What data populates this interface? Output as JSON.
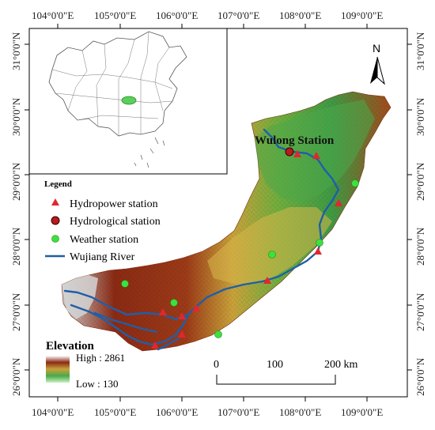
{
  "axes": {
    "top_ticks": [
      "104°0'0\"E",
      "105°0'0\"E",
      "106°0'0\"E",
      "107°0'0\"E",
      "108°0'0\"E",
      "109°0'0\"E"
    ],
    "bottom_ticks": [
      "104°0'0\"E",
      "105°0'0\"E",
      "106°0'0\"E",
      "107°0'0\"E",
      "108°0'0\"E",
      "109°0'0\"E"
    ],
    "left_ticks": [
      "31°0'0\"N",
      "30°0'0\"N",
      "29°0'0\"N",
      "28°0'0\"N",
      "27°0'0\"N",
      "26°0'0\"N"
    ],
    "right_ticks": [
      "31°0'0\"N",
      "30°0'0\"N",
      "29°0'0\"N",
      "28°0'0\"N",
      "27°0'0\"N",
      "26°0'0\"N"
    ]
  },
  "legend": {
    "title": "Legend",
    "items": [
      {
        "label": "Hydropower station",
        "symbol": "triangle",
        "color": "#e3262b"
      },
      {
        "label": "Hydrological station",
        "symbol": "circle",
        "color": "#b71c1c"
      },
      {
        "label": "Weather station",
        "symbol": "circle",
        "color": "#3ee03e"
      },
      {
        "label": "Wujiang River",
        "symbol": "line",
        "color": "#1f5fa8"
      }
    ]
  },
  "elevation": {
    "title": "Elevation",
    "high": "High : 2861",
    "low": "Low : 130"
  },
  "station_label": "Wulong Station",
  "scale_bar": {
    "labels": [
      "0",
      "100",
      "200 km"
    ]
  },
  "north_arrow": {
    "label": "N"
  },
  "colors": {
    "river": "#1f5fa8",
    "hydropower": "#e3262b",
    "hydrological": "#b71c1c",
    "weather": "#3ee03e",
    "low_elev": "#3a8f3a",
    "mid_elev": "#c9a23a",
    "high_elev": "#8b2a14",
    "peak_elev": "#d9d9d9"
  }
}
